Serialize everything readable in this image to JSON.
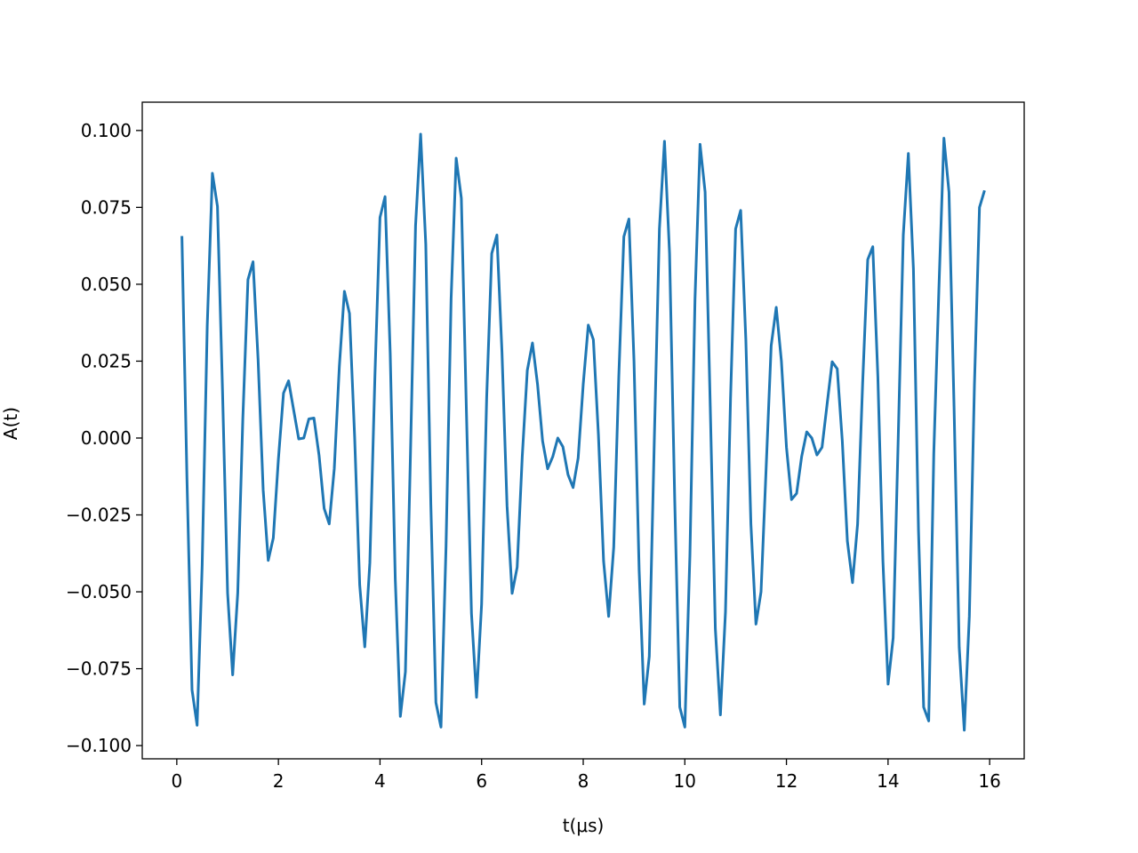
{
  "chart_data": {
    "type": "line",
    "title": "",
    "xlabel": "t(μs)",
    "ylabel": "A(t)",
    "xlim": [
      -0.68,
      16.68
    ],
    "ylim": [
      -0.1043,
      0.1092
    ],
    "grid": false,
    "legend": "none",
    "x_ticks": [
      0,
      2,
      4,
      6,
      8,
      10,
      12,
      14,
      16
    ],
    "x_tick_labels": [
      "0",
      "2",
      "4",
      "6",
      "8",
      "10",
      "12",
      "14",
      "16"
    ],
    "y_ticks": [
      0.1,
      0.075,
      0.05,
      0.025,
      0.0,
      -0.025,
      -0.05,
      -0.075,
      -0.1
    ],
    "y_tick_labels": [
      "0.100",
      "0.075",
      "0.050",
      "0.025",
      "0.000",
      "−0.025",
      "−0.050",
      "−0.075",
      "−0.100"
    ],
    "x_start": 0.1,
    "x_step": 0.1,
    "series": [
      {
        "color": "#1f77b4",
        "values": [
          0.0657,
          -0.0133,
          -0.0819,
          -0.0934,
          -0.0413,
          0.0365,
          0.0861,
          0.0753,
          0.0152,
          -0.0504,
          -0.077,
          -0.0504,
          0.006,
          0.0515,
          0.0573,
          0.0255,
          -0.0168,
          -0.0398,
          -0.0325,
          -0.007,
          0.0146,
          0.0186,
          0.0091,
          -0.0003,
          0.0,
          0.0062,
          0.0065,
          -0.0057,
          -0.0229,
          -0.0279,
          -0.0099,
          0.0233,
          0.0477,
          0.0405,
          0.0003,
          -0.0478,
          -0.0679,
          -0.0405,
          0.0201,
          0.0717,
          0.0785,
          0.0275,
          -0.046,
          -0.0905,
          -0.076,
          -0.0049,
          0.069,
          0.0988,
          0.063,
          -0.0216,
          -0.086,
          -0.094,
          -0.0351,
          0.0453,
          0.091,
          0.078,
          0.0088,
          -0.057,
          -0.0843,
          -0.054,
          0.0132,
          0.06,
          0.066,
          0.028,
          -0.022,
          -0.0505,
          -0.042,
          -0.0061,
          0.022,
          0.0309,
          0.0175,
          -0.001,
          -0.01,
          -0.0061,
          0.0,
          -0.0028,
          -0.0119,
          -0.0161,
          -0.0065,
          0.0175,
          0.0367,
          0.032,
          0.001,
          -0.04,
          -0.058,
          -0.0355,
          0.02,
          0.0655,
          0.0712,
          0.025,
          -0.043,
          -0.0865,
          -0.071,
          0.0,
          0.068,
          0.0965,
          0.06,
          -0.02,
          -0.0875,
          -0.094,
          -0.038,
          0.045,
          0.0955,
          0.08,
          0.01,
          -0.062,
          -0.09,
          -0.0565,
          0.013,
          0.068,
          0.074,
          0.032,
          -0.028,
          -0.0605,
          -0.05,
          -0.01,
          0.03,
          0.0425,
          0.025,
          -0.003,
          -0.02,
          -0.018,
          -0.006,
          0.002,
          0.0,
          -0.0055,
          -0.003,
          0.011,
          0.0248,
          0.0225,
          -0.001,
          -0.0335,
          -0.047,
          -0.028,
          0.018,
          0.058,
          0.0622,
          0.02,
          -0.04,
          -0.08,
          -0.065,
          0.0,
          0.066,
          0.0925,
          0.055,
          -0.03,
          -0.0875,
          -0.092,
          -0.005,
          0.048,
          0.0975,
          0.08,
          0.01,
          -0.068,
          -0.095,
          -0.058,
          0.017,
          0.075,
          0.0805
        ]
      }
    ]
  }
}
